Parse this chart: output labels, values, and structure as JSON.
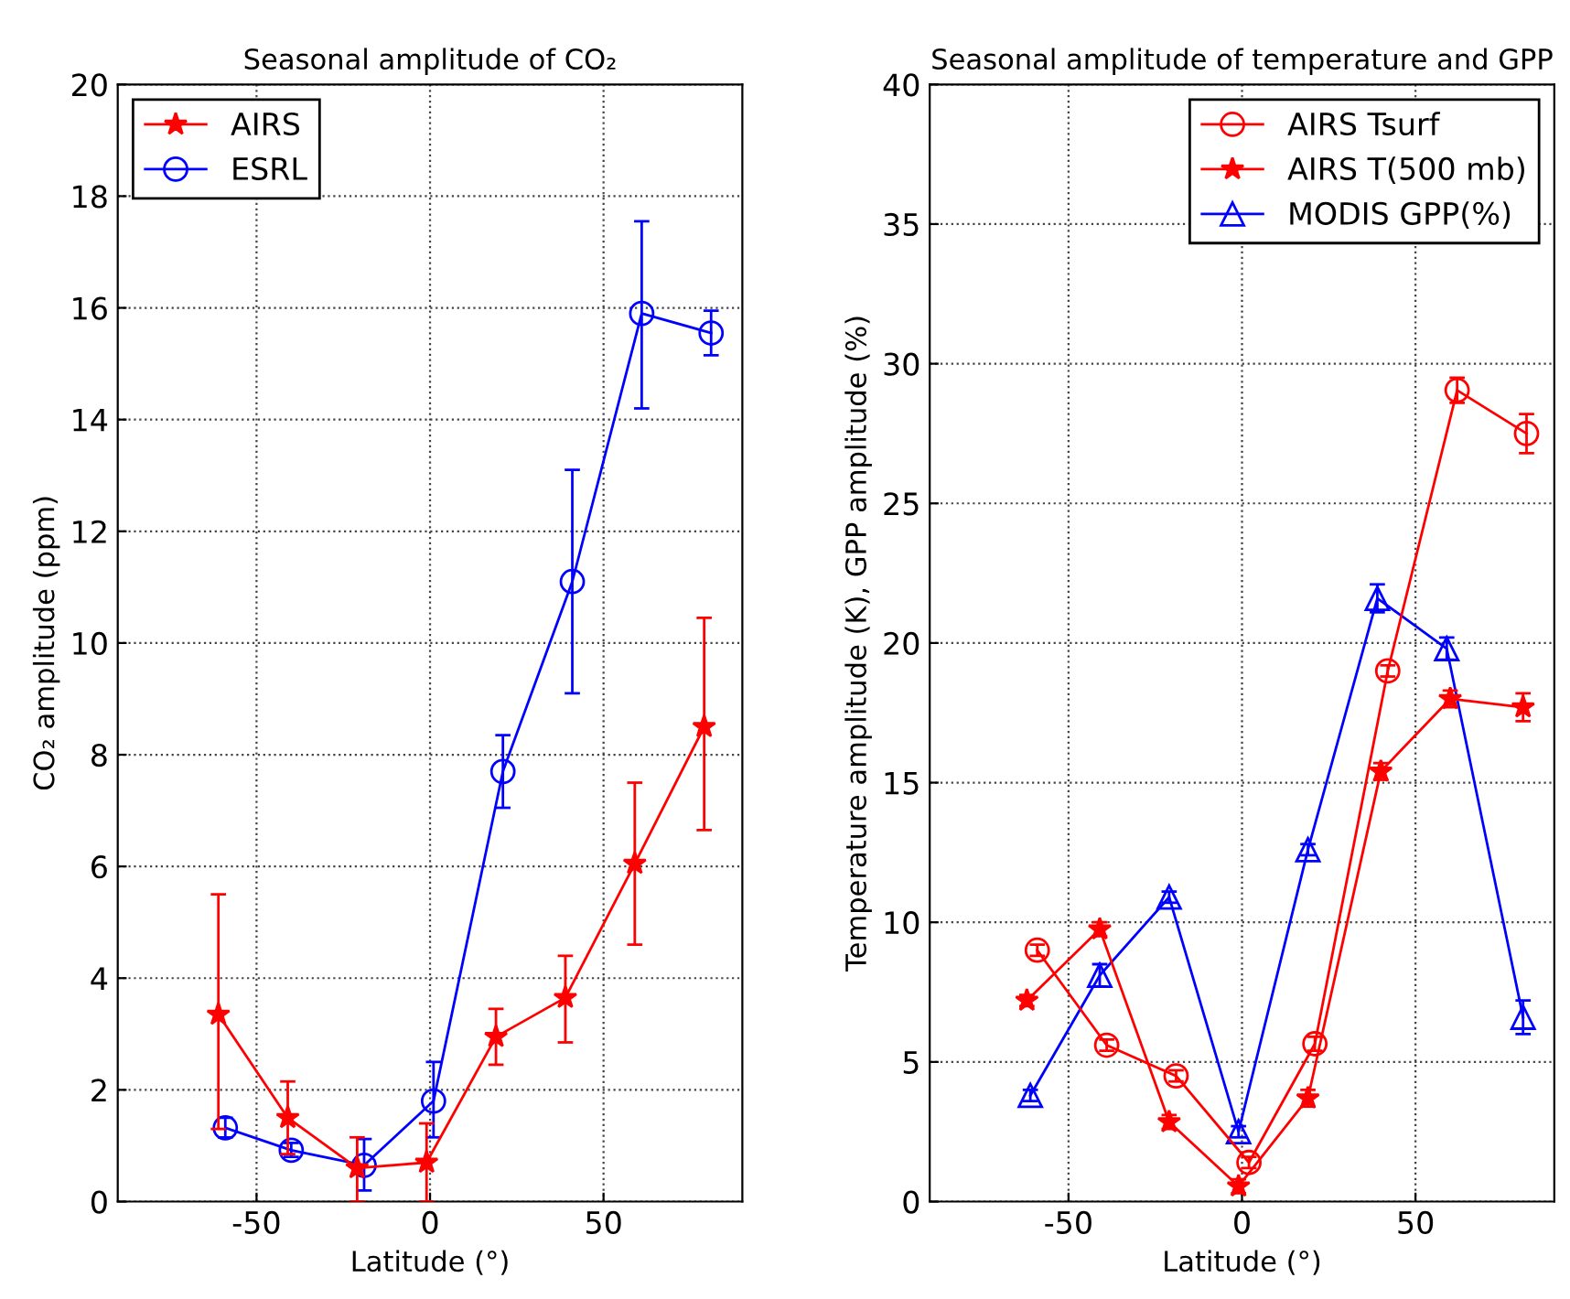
{
  "chart_data": [
    {
      "type": "line",
      "title": "Seasonal amplitude of CO₂",
      "xlabel": "Latitude (°)",
      "ylabel": "CO₂ amplitude (ppm)",
      "xlim": [
        -90,
        90
      ],
      "xticks": [
        -50,
        0,
        50
      ],
      "ylim": [
        0,
        20
      ],
      "yticks": [
        0,
        2,
        4,
        6,
        8,
        10,
        12,
        14,
        16,
        18,
        20
      ],
      "grid": true,
      "legend": "top left",
      "line_style": "solid",
      "series": [
        {
          "name": "AIRS",
          "color": "#ff0000",
          "marker": "star",
          "x": [
            -61,
            -41,
            -21,
            -1,
            19,
            39,
            59,
            79
          ],
          "values": [
            3.35,
            1.5,
            0.6,
            0.7,
            2.95,
            3.65,
            6.05,
            8.5
          ],
          "errors": [
            [
              1.3,
              5.5
            ],
            [
              0.85,
              2.15
            ],
            [
              0,
              1.15
            ],
            [
              0,
              1.4
            ],
            [
              2.45,
              3.45
            ],
            [
              2.85,
              4.4
            ],
            [
              4.6,
              7.5
            ],
            [
              6.65,
              10.45
            ]
          ]
        },
        {
          "name": "ESRL",
          "color": "#0000ff",
          "marker": "circle",
          "x": [
            -59,
            -40,
            -19,
            1,
            21,
            41,
            61,
            81
          ],
          "values": [
            1.32,
            0.92,
            0.65,
            1.8,
            7.7,
            11.1,
            15.9,
            15.55
          ],
          "errors": [
            [
              1.15,
              1.5
            ],
            [
              0.8,
              1.05
            ],
            [
              0.2,
              1.12
            ],
            [
              1.15,
              2.5
            ],
            [
              7.05,
              8.35
            ],
            [
              9.1,
              13.1
            ],
            [
              14.2,
              17.55
            ],
            [
              15.15,
              15.95
            ]
          ]
        }
      ]
    },
    {
      "type": "line",
      "title": "Seasonal amplitude of temperature and GPP",
      "xlabel": "Latitude (°)",
      "ylabel": "Temperature amplitude (K), GPP amplitude (%)",
      "xlim": [
        -90,
        90
      ],
      "xticks": [
        -50,
        0,
        50
      ],
      "ylim": [
        0,
        40
      ],
      "yticks": [
        0,
        5,
        10,
        15,
        20,
        25,
        30,
        35,
        40
      ],
      "grid": true,
      "legend": "top right",
      "line_style": "solid",
      "series": [
        {
          "name": "AIRS Tsurf",
          "color": "#ff0000",
          "marker": "circle",
          "x": [
            -59,
            -39,
            -19,
            2,
            21,
            42,
            62,
            82
          ],
          "values": [
            9.0,
            5.6,
            4.5,
            1.4,
            5.65,
            19.0,
            29.05,
            27.5
          ],
          "errors": [
            [
              8.8,
              9.2
            ],
            [
              5.4,
              5.8
            ],
            [
              4.3,
              4.7
            ],
            [
              1.2,
              1.6
            ],
            [
              5.4,
              5.9
            ],
            [
              18.8,
              19.2
            ],
            [
              28.6,
              29.5
            ],
            [
              26.8,
              28.2
            ]
          ]
        },
        {
          "name": "AIRS T(500 mb)",
          "color": "#ff0000",
          "marker": "star",
          "x": [
            -62,
            -41,
            -21,
            -1,
            19,
            40,
            60,
            81
          ],
          "values": [
            7.2,
            9.75,
            2.85,
            0.55,
            3.7,
            15.4,
            18.0,
            17.7
          ],
          "errors": [
            [
              7.0,
              7.4
            ],
            [
              9.5,
              10.0
            ],
            [
              2.6,
              3.1
            ],
            [
              0.3,
              0.8
            ],
            [
              3.4,
              4.0
            ],
            [
              15.1,
              15.7
            ],
            [
              17.7,
              18.3
            ],
            [
              17.2,
              18.2
            ]
          ]
        },
        {
          "name": "MODIS GPP(%)",
          "color": "#0000ff",
          "marker": "triangle",
          "x": [
            -61,
            -41,
            -21,
            -1,
            19,
            39,
            59,
            81
          ],
          "values": [
            3.8,
            8.1,
            10.9,
            2.5,
            12.6,
            21.6,
            19.8,
            6.6
          ],
          "errors": [
            [
              3.6,
              4.0
            ],
            [
              7.7,
              8.5
            ],
            [
              10.7,
              11.1
            ],
            [
              2.3,
              2.7
            ],
            [
              12.4,
              12.8
            ],
            [
              21.1,
              22.1
            ],
            [
              19.4,
              20.2
            ],
            [
              6.0,
              7.2
            ]
          ]
        }
      ]
    }
  ]
}
